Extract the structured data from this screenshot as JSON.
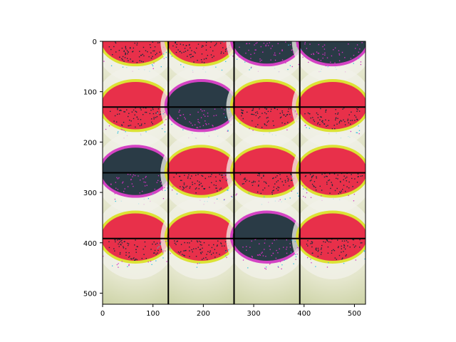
{
  "figure": {
    "x_ticks": [
      "0",
      "100",
      "200",
      "300",
      "400",
      "500"
    ],
    "y_ticks": [
      "0",
      "100",
      "200",
      "300",
      "400",
      "500"
    ],
    "x_tick_values": [
      0,
      100,
      200,
      300,
      400,
      500
    ],
    "y_tick_values": [
      0,
      100,
      200,
      300,
      400,
      500
    ],
    "x_range": [
      0,
      522
    ],
    "y_range": [
      0,
      522
    ],
    "grid": {
      "rows": 4,
      "cols": 4
    },
    "tiles": [
      {
        "variant": "red"
      },
      {
        "variant": "red"
      },
      {
        "variant": "dark"
      },
      {
        "variant": "dark"
      },
      {
        "variant": "red"
      },
      {
        "variant": "dark"
      },
      {
        "variant": "red"
      },
      {
        "variant": "red"
      },
      {
        "variant": "dark"
      },
      {
        "variant": "red"
      },
      {
        "variant": "red"
      },
      {
        "variant": "red"
      },
      {
        "variant": "red"
      },
      {
        "variant": "red"
      },
      {
        "variant": "dark"
      },
      {
        "variant": "red"
      }
    ],
    "colors": {
      "red_cap": "#e8304a",
      "dark_cap": "#2a3b46",
      "background": "#d8ddb4",
      "halo": "#f2f2ea",
      "yellow_edge": "#d9e020",
      "magenta_edge": "#d030c0",
      "speck": "#1a2a3a",
      "axis": "#000000"
    }
  }
}
